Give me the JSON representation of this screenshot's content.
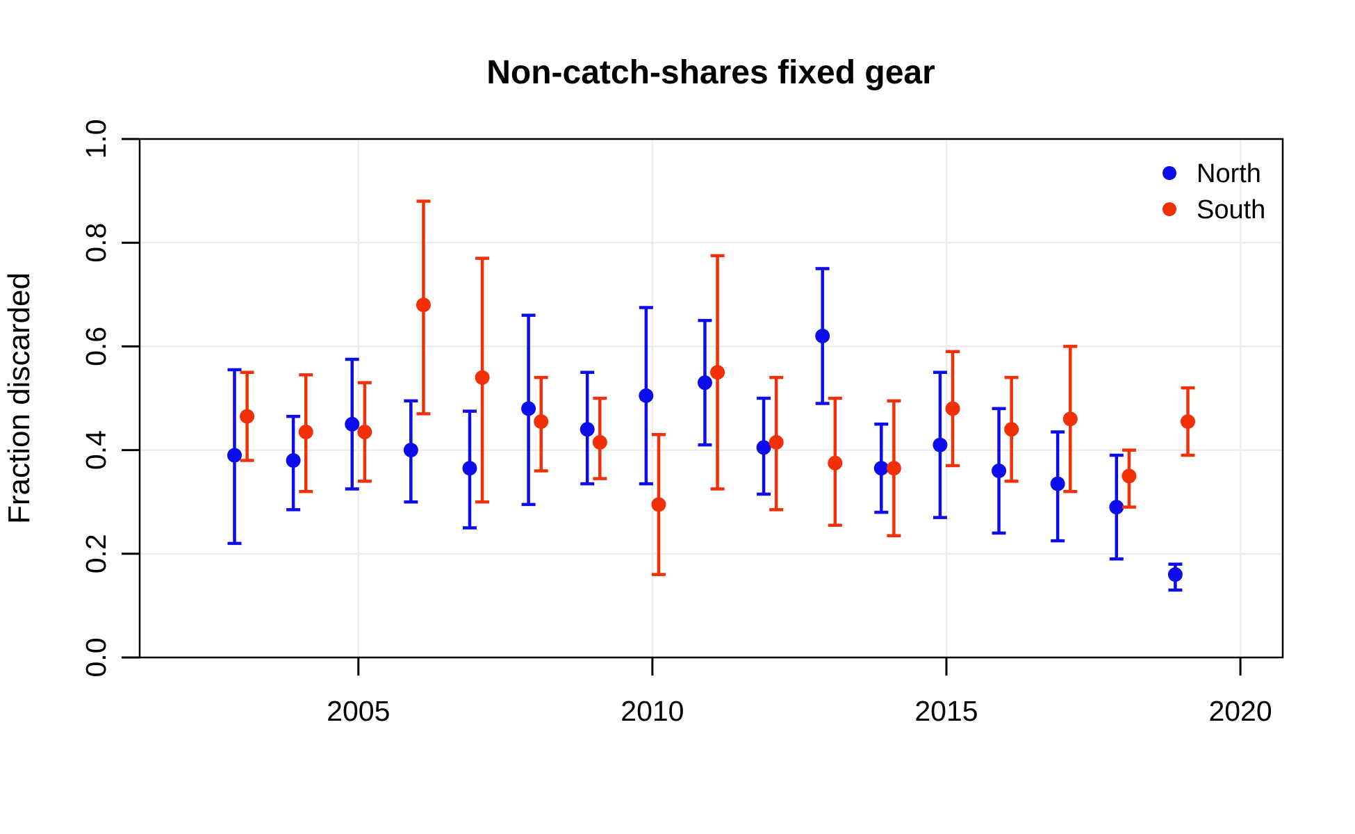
{
  "page": {
    "background": "#ffffff"
  },
  "chart_data": {
    "type": "scatter",
    "title": "Non-catch-shares fixed gear",
    "xlabel": "",
    "ylabel": "Fraction discarded",
    "xlim": [
      2001.28,
      2020.72
    ],
    "ylim": [
      0,
      1
    ],
    "xticks": [
      2005,
      2010,
      2015,
      2020
    ],
    "yticks": [
      0,
      0.2,
      0.4,
      0.6,
      0.8,
      1
    ],
    "ytick_labels": [
      "0.0",
      "0.2",
      "0.4",
      "0.6",
      "0.8",
      "1.0"
    ],
    "grid": true,
    "grid_color": "#ededed",
    "axis_color": "#000000",
    "legend": {
      "position": "top-right",
      "entries": [
        {
          "label": "North",
          "color": "#0d0deb"
        },
        {
          "label": "South",
          "color": "#f23008"
        }
      ]
    },
    "series": [
      {
        "name": "North",
        "color": "#0d0deb",
        "x_offset_years": -0.107,
        "points": [
          {
            "year": 2003,
            "value": 0.39,
            "lo": 0.22,
            "hi": 0.555
          },
          {
            "year": 2004,
            "value": 0.38,
            "lo": 0.285,
            "hi": 0.465
          },
          {
            "year": 2005,
            "value": 0.45,
            "lo": 0.325,
            "hi": 0.575
          },
          {
            "year": 2006,
            "value": 0.4,
            "lo": 0.3,
            "hi": 0.495
          },
          {
            "year": 2007,
            "value": 0.365,
            "lo": 0.25,
            "hi": 0.475
          },
          {
            "year": 2008,
            "value": 0.48,
            "lo": 0.295,
            "hi": 0.66
          },
          {
            "year": 2009,
            "value": 0.44,
            "lo": 0.335,
            "hi": 0.55
          },
          {
            "year": 2010,
            "value": 0.505,
            "lo": 0.335,
            "hi": 0.675
          },
          {
            "year": 2011,
            "value": 0.53,
            "lo": 0.41,
            "hi": 0.65
          },
          {
            "year": 2012,
            "value": 0.405,
            "lo": 0.315,
            "hi": 0.5
          },
          {
            "year": 2013,
            "value": 0.62,
            "lo": 0.49,
            "hi": 0.75
          },
          {
            "year": 2014,
            "value": 0.365,
            "lo": 0.28,
            "hi": 0.45
          },
          {
            "year": 2015,
            "value": 0.41,
            "lo": 0.27,
            "hi": 0.55
          },
          {
            "year": 2016,
            "value": 0.36,
            "lo": 0.24,
            "hi": 0.48
          },
          {
            "year": 2017,
            "value": 0.335,
            "lo": 0.225,
            "hi": 0.435
          },
          {
            "year": 2018,
            "value": 0.29,
            "lo": 0.19,
            "hi": 0.39
          },
          {
            "year": 2019,
            "value": 0.16,
            "lo": 0.13,
            "hi": 0.18
          }
        ]
      },
      {
        "name": "South",
        "color": "#f23008",
        "x_offset_years": 0.107,
        "points": [
          {
            "year": 2003,
            "value": 0.465,
            "lo": 0.38,
            "hi": 0.55
          },
          {
            "year": 2004,
            "value": 0.435,
            "lo": 0.32,
            "hi": 0.545
          },
          {
            "year": 2005,
            "value": 0.435,
            "lo": 0.34,
            "hi": 0.53
          },
          {
            "year": 2006,
            "value": 0.68,
            "lo": 0.47,
            "hi": 0.88
          },
          {
            "year": 2007,
            "value": 0.54,
            "lo": 0.3,
            "hi": 0.77
          },
          {
            "year": 2008,
            "value": 0.455,
            "lo": 0.36,
            "hi": 0.54
          },
          {
            "year": 2009,
            "value": 0.415,
            "lo": 0.345,
            "hi": 0.5
          },
          {
            "year": 2010,
            "value": 0.295,
            "lo": 0.16,
            "hi": 0.43
          },
          {
            "year": 2011,
            "value": 0.55,
            "lo": 0.325,
            "hi": 0.775
          },
          {
            "year": 2012,
            "value": 0.415,
            "lo": 0.285,
            "hi": 0.54
          },
          {
            "year": 2013,
            "value": 0.375,
            "lo": 0.255,
            "hi": 0.5
          },
          {
            "year": 2014,
            "value": 0.365,
            "lo": 0.235,
            "hi": 0.495
          },
          {
            "year": 2015,
            "value": 0.48,
            "lo": 0.37,
            "hi": 0.59
          },
          {
            "year": 2016,
            "value": 0.44,
            "lo": 0.34,
            "hi": 0.54
          },
          {
            "year": 2017,
            "value": 0.46,
            "lo": 0.32,
            "hi": 0.6
          },
          {
            "year": 2018,
            "value": 0.35,
            "lo": 0.29,
            "hi": 0.4
          },
          {
            "year": 2019,
            "value": 0.455,
            "lo": 0.39,
            "hi": 0.52
          }
        ]
      }
    ]
  }
}
